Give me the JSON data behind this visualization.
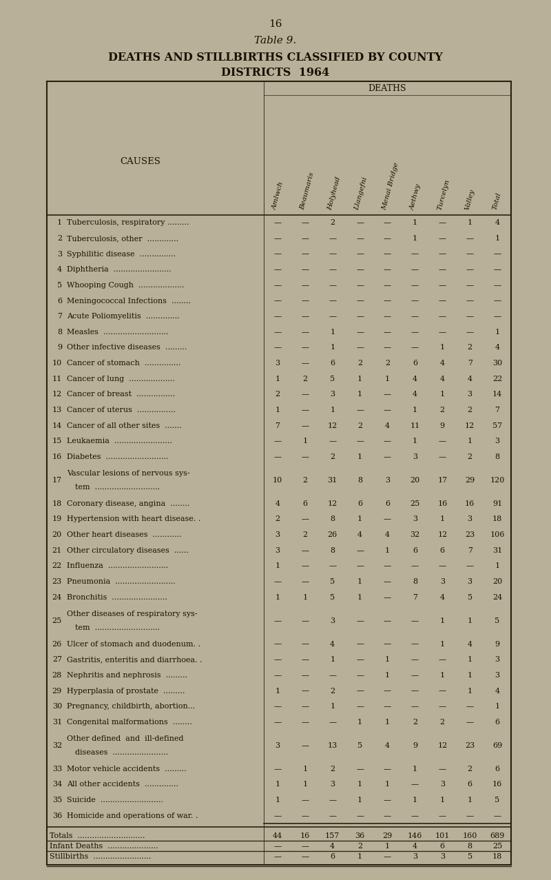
{
  "page_number": "16",
  "table_title": "Table 9.",
  "main_title": "DEATHS AND STILLBIRTHS CLASSIFIED BY COUNTY\nDISTRICTS 1964",
  "section_header": "DEATHS",
  "col_header_label": "CAUSES",
  "columns": [
    "Amlwch",
    "Beaumaris",
    "Holyhead",
    "Llangefni",
    "Menai Bridge",
    "Aethwy",
    "Turcelyn",
    "Valley",
    "Total"
  ],
  "rows": [
    {
      "num": "1",
      "label1": "Tuberculosis, respiratory .........",
      "label2": "",
      "values": [
        "—",
        "—",
        "2",
        "—",
        "—",
        "1",
        "—",
        "1",
        "4"
      ]
    },
    {
      "num": "2",
      "label1": "Tuberculosis, other  .............",
      "label2": "",
      "values": [
        "—",
        "—",
        "—",
        "—",
        "—",
        "1",
        "—",
        "—",
        "1"
      ]
    },
    {
      "num": "3",
      "label1": "Syphilitic disease  ...............",
      "label2": "",
      "values": [
        "—",
        "—",
        "—",
        "—",
        "—",
        "—",
        "—",
        "—",
        "—"
      ]
    },
    {
      "num": "4",
      "label1": "Diphtheria  ........................",
      "label2": "",
      "values": [
        "—",
        "—",
        "—",
        "—",
        "—",
        "—",
        "—",
        "—",
        "—"
      ]
    },
    {
      "num": "5",
      "label1": "Whooping Cough  ...................",
      "label2": "",
      "values": [
        "—",
        "—",
        "—",
        "—",
        "—",
        "—",
        "—",
        "—",
        "—"
      ]
    },
    {
      "num": "6",
      "label1": "Meningococcal Infections  ........",
      "label2": "",
      "values": [
        "—",
        "—",
        "—",
        "—",
        "—",
        "—",
        "—",
        "—",
        "—"
      ]
    },
    {
      "num": "7",
      "label1": "Acute Poliomyelitis  ..............",
      "label2": "",
      "values": [
        "—",
        "—",
        "—",
        "—",
        "—",
        "—",
        "—",
        "—",
        "—"
      ]
    },
    {
      "num": "8",
      "label1": "Measles  ...........................",
      "label2": "",
      "values": [
        "—",
        "—",
        "1",
        "—",
        "—",
        "—",
        "—",
        "—",
        "1"
      ]
    },
    {
      "num": "9",
      "label1": "Other infective diseases  .........",
      "label2": "",
      "values": [
        "—",
        "—",
        "1",
        "—",
        "—",
        "—",
        "1",
        "2",
        "4"
      ]
    },
    {
      "num": "10",
      "label1": "Cancer of stomach  ...............",
      "label2": "",
      "values": [
        "3",
        "—",
        "6",
        "2",
        "2",
        "6",
        "4",
        "7",
        "30"
      ]
    },
    {
      "num": "11",
      "label1": "Cancer of lung  ...................",
      "label2": "",
      "values": [
        "1",
        "2",
        "5",
        "1",
        "1",
        "4",
        "4",
        "4",
        "22"
      ]
    },
    {
      "num": "12",
      "label1": "Cancer of breast  ................",
      "label2": "",
      "values": [
        "2",
        "—",
        "3",
        "1",
        "—",
        "4",
        "1",
        "3",
        "14"
      ]
    },
    {
      "num": "13",
      "label1": "Cancer of uterus  ................",
      "label2": "",
      "values": [
        "1",
        "—",
        "1",
        "—",
        "—",
        "1",
        "2",
        "2",
        "7"
      ]
    },
    {
      "num": "14",
      "label1": "Cancer of all other sites  .......",
      "label2": "",
      "values": [
        "7",
        "—",
        "12",
        "2",
        "4",
        "11",
        "9",
        "12",
        "57"
      ]
    },
    {
      "num": "15",
      "label1": "Leukaemia  ........................",
      "label2": "",
      "values": [
        "—",
        "1",
        "—",
        "—",
        "—",
        "1",
        "—",
        "1",
        "3"
      ]
    },
    {
      "num": "16",
      "label1": "Diabetes  ..........................",
      "label2": "",
      "values": [
        "—",
        "—",
        "2",
        "1",
        "—",
        "3",
        "—",
        "2",
        "8"
      ]
    },
    {
      "num": "17",
      "label1": "Vascular lesions of nervous sys-",
      "label2": "tem  ...........................",
      "values": [
        "10",
        "2",
        "31",
        "8",
        "3",
        "20",
        "17",
        "29",
        "120"
      ]
    },
    {
      "num": "18",
      "label1": "Coronary disease, angina  ........",
      "label2": "",
      "values": [
        "4",
        "6",
        "12",
        "6",
        "6",
        "25",
        "16",
        "16",
        "91"
      ]
    },
    {
      "num": "19",
      "label1": "Hypertension with heart disease. .",
      "label2": "",
      "values": [
        "2",
        "—",
        "8",
        "1",
        "—",
        "3",
        "1",
        "3",
        "18"
      ]
    },
    {
      "num": "20",
      "label1": "Other heart diseases  ............",
      "label2": "",
      "values": [
        "3",
        "2",
        "26",
        "4",
        "4",
        "32",
        "12",
        "23",
        "106"
      ]
    },
    {
      "num": "21",
      "label1": "Other circulatory diseases  ......",
      "label2": "",
      "values": [
        "3",
        "—",
        "8",
        "—",
        "1",
        "6",
        "6",
        "7",
        "31"
      ]
    },
    {
      "num": "22",
      "label1": "Influenza  .........................",
      "label2": "",
      "values": [
        "1",
        "—",
        "—",
        "—",
        "—",
        "—",
        "—",
        "—",
        "1"
      ]
    },
    {
      "num": "23",
      "label1": "Pneumonia  .........................",
      "label2": "",
      "values": [
        "—",
        "—",
        "5",
        "1",
        "—",
        "8",
        "3",
        "3",
        "20"
      ]
    },
    {
      "num": "24",
      "label1": "Bronchitis  .......................",
      "label2": "",
      "values": [
        "1",
        "1",
        "5",
        "1",
        "—",
        "7",
        "4",
        "5",
        "24"
      ]
    },
    {
      "num": "25",
      "label1": "Other diseases of respiratory sys-",
      "label2": "tem  ...........................",
      "values": [
        "—",
        "—",
        "3",
        "—",
        "—",
        "—",
        "1",
        "1",
        "5"
      ]
    },
    {
      "num": "26",
      "label1": "Ulcer of stomach and duodenum. .",
      "label2": "",
      "values": [
        "—",
        "—",
        "4",
        "—",
        "—",
        "—",
        "1",
        "4",
        "9"
      ]
    },
    {
      "num": "27",
      "label1": "Gastritis, enteritis and diarrhoea. .",
      "label2": "",
      "values": [
        "—",
        "—",
        "1",
        "—",
        "1",
        "—",
        "—",
        "1",
        "3"
      ]
    },
    {
      "num": "28",
      "label1": "Nephritis and nephrosis  .........",
      "label2": "",
      "values": [
        "—",
        "—",
        "—",
        "—",
        "1",
        "—",
        "1",
        "1",
        "3"
      ]
    },
    {
      "num": "29",
      "label1": "Hyperplasia of prostate  .........",
      "label2": "",
      "values": [
        "1",
        "—",
        "2",
        "—",
        "—",
        "—",
        "—",
        "1",
        "4"
      ]
    },
    {
      "num": "30",
      "label1": "Pregnancy, childbirth, abortion...",
      "label2": "",
      "values": [
        "—",
        "—",
        "1",
        "—",
        "—",
        "—",
        "—",
        "—",
        "1"
      ]
    },
    {
      "num": "31",
      "label1": "Congenital malformations  ........",
      "label2": "",
      "values": [
        "—",
        "—",
        "—",
        "1",
        "1",
        "2",
        "2",
        "—",
        "6"
      ]
    },
    {
      "num": "32",
      "label1": "Other defined  and  ill-defined",
      "label2": "diseases  .......................",
      "values": [
        "3",
        "—",
        "13",
        "5",
        "4",
        "9",
        "12",
        "23",
        "69"
      ]
    },
    {
      "num": "33",
      "label1": "Motor vehicle accidents  .........",
      "label2": "",
      "values": [
        "—",
        "1",
        "2",
        "—",
        "—",
        "1",
        "—",
        "2",
        "6"
      ]
    },
    {
      "num": "34",
      "label1": "All other accidents  ..............",
      "label2": "",
      "values": [
        "1",
        "1",
        "3",
        "1",
        "1",
        "—",
        "3",
        "6",
        "16"
      ]
    },
    {
      "num": "35",
      "label1": "Suicide  ..........................",
      "label2": "",
      "values": [
        "1",
        "—",
        "—",
        "1",
        "—",
        "1",
        "1",
        "1",
        "5"
      ]
    },
    {
      "num": "36",
      "label1": "Homicide and operations of war. .",
      "label2": "",
      "values": [
        "—",
        "—",
        "—",
        "—",
        "—",
        "—",
        "—",
        "—",
        "—"
      ]
    }
  ],
  "totals_row": {
    "label": "Totals  ............................",
    "values": [
      "44",
      "16",
      "157",
      "36",
      "29",
      "146",
      "101",
      "160",
      "689"
    ]
  },
  "infant_row": {
    "label": "Infant Deaths  .....................",
    "values": [
      "—",
      "—",
      "4",
      "2",
      "1",
      "4",
      "6",
      "8",
      "25"
    ]
  },
  "still_row": {
    "label": "Stillbirths  ........................",
    "values": [
      "—",
      "—",
      "6",
      "1",
      "—",
      "3",
      "3",
      "5",
      "18"
    ]
  },
  "bg_color": "#b8b099",
  "text_color": "#1a1000",
  "line_color": "#2a2010"
}
